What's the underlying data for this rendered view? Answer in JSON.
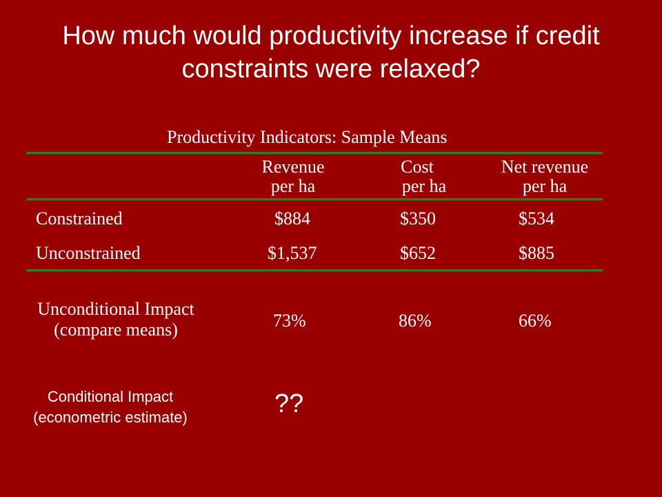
{
  "slide": {
    "title_line1": "How much would productivity increase if credit",
    "title_line2": "constraints were relaxed?"
  },
  "table": {
    "caption": "Productivity Indicators:  Sample Means",
    "headers": [
      {
        "line1": "Revenue",
        "line2": "per ha"
      },
      {
        "line1": "Cost",
        "line2": "per ha"
      },
      {
        "line1": "Net revenue",
        "line2": "per ha"
      }
    ],
    "rows": [
      {
        "label": "Constrained",
        "values": [
          "$884",
          "$350",
          "$534"
        ]
      },
      {
        "label": "Unconstrained",
        "values": [
          "$1,537",
          "$652",
          "$885"
        ]
      }
    ],
    "impact": {
      "label_line1": "Unconditional Impact",
      "label_line2": "(compare means)",
      "values": [
        "73%",
        "86%",
        "66%"
      ]
    },
    "conditional": {
      "label_line1": "Conditional Impact",
      "label_line2": "(econometric estimate)",
      "value": "??"
    }
  },
  "colors": {
    "background": "#990000",
    "rule": "#2e7d1e",
    "text": "#ffffff"
  }
}
